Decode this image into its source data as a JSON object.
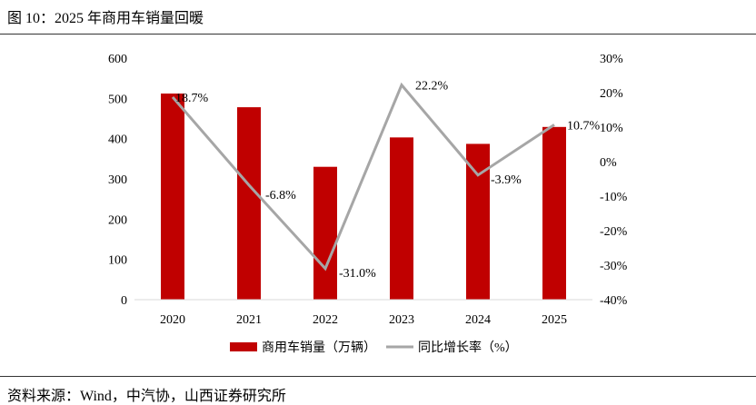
{
  "title": "图 10：2025 年商用车销量回暖",
  "source": "资料来源：Wind，中汽协，山西证券研究所",
  "chart_data": {
    "type": "bar",
    "title": "2025 年商用车销量回暖",
    "categories": [
      "2020",
      "2021",
      "2022",
      "2023",
      "2024",
      "2025"
    ],
    "series": [
      {
        "name": "商用车销量（万辆）",
        "type": "bar",
        "axis": "left",
        "color": "#C00000",
        "values": [
          512,
          478,
          330,
          403,
          387,
          429
        ]
      },
      {
        "name": "同比增长率（%）",
        "type": "line",
        "axis": "right",
        "color": "#A6A6A6",
        "values": [
          18.7,
          -6.8,
          -31.0,
          22.2,
          -3.9,
          10.7
        ],
        "labels": [
          "18.7%",
          "-6.8%",
          "-31.0%",
          "22.2%",
          "-3.9%",
          "10.7%"
        ]
      }
    ],
    "ylim": [
      0,
      600
    ],
    "yticks": [
      "0",
      "100",
      "200",
      "300",
      "400",
      "500",
      "600"
    ],
    "y2lim": [
      -40,
      30
    ],
    "y2ticks": [
      "-40%",
      "-30%",
      "-20%",
      "-10%",
      "0%",
      "10%",
      "20%",
      "30%"
    ],
    "legend": "bottom",
    "grid": false
  }
}
